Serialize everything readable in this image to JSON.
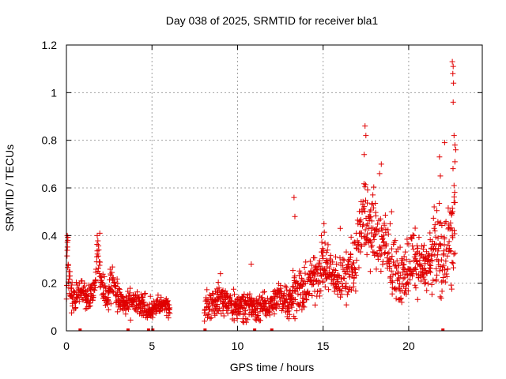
{
  "chart_data": {
    "type": "scatter",
    "title": "Day 038 of 2025, SRMTID for receiver bla1",
    "xlabel": "GPS time / hours",
    "ylabel": "SRMTID / TECUs",
    "xlim": [
      0,
      24.3
    ],
    "ylim": [
      0,
      1.2
    ],
    "x_ticks": [
      0,
      5,
      10,
      15,
      20
    ],
    "x_tick_labels": [
      "0",
      "5",
      "10",
      "15",
      "20"
    ],
    "y_ticks": [
      0,
      0.2,
      0.4,
      0.6,
      0.8,
      1,
      1.2
    ],
    "y_tick_labels": [
      "0",
      "0.2",
      "0.4",
      "0.6",
      "0.8",
      "1",
      "1.2"
    ],
    "grid": true,
    "marker": "+",
    "color": "#e00000",
    "profile": [
      [
        0.0,
        0.15,
        0.05
      ],
      [
        0.05,
        0.35,
        0.05
      ],
      [
        0.1,
        0.25,
        0.06
      ],
      [
        0.3,
        0.13,
        0.04
      ],
      [
        0.6,
        0.15,
        0.04
      ],
      [
        0.9,
        0.17,
        0.04
      ],
      [
        1.2,
        0.13,
        0.04
      ],
      [
        1.6,
        0.17,
        0.05
      ],
      [
        1.85,
        0.33,
        0.07
      ],
      [
        2.1,
        0.2,
        0.05
      ],
      [
        2.4,
        0.14,
        0.04
      ],
      [
        2.7,
        0.22,
        0.06
      ],
      [
        3.0,
        0.14,
        0.05
      ],
      [
        3.4,
        0.1,
        0.04
      ],
      [
        3.8,
        0.12,
        0.04
      ],
      [
        4.2,
        0.11,
        0.04
      ],
      [
        4.6,
        0.1,
        0.04
      ],
      [
        5.0,
        0.09,
        0.03
      ],
      [
        5.5,
        0.11,
        0.03
      ],
      [
        6.0,
        0.1,
        0.03
      ],
      [
        8.1,
        0.1,
        0.04
      ],
      [
        8.6,
        0.12,
        0.05
      ],
      [
        9.0,
        0.14,
        0.05
      ],
      [
        9.5,
        0.11,
        0.05
      ],
      [
        10.0,
        0.1,
        0.04
      ],
      [
        10.5,
        0.12,
        0.05
      ],
      [
        11.0,
        0.09,
        0.04
      ],
      [
        11.5,
        0.1,
        0.04
      ],
      [
        12.0,
        0.12,
        0.04
      ],
      [
        12.5,
        0.14,
        0.05
      ],
      [
        13.0,
        0.13,
        0.05
      ],
      [
        13.4,
        0.18,
        0.08
      ],
      [
        13.8,
        0.16,
        0.06
      ],
      [
        14.2,
        0.2,
        0.08
      ],
      [
        14.6,
        0.23,
        0.08
      ],
      [
        15.0,
        0.3,
        0.09
      ],
      [
        15.5,
        0.23,
        0.07
      ],
      [
        16.0,
        0.21,
        0.07
      ],
      [
        16.5,
        0.25,
        0.08
      ],
      [
        16.9,
        0.3,
        0.1
      ],
      [
        17.3,
        0.5,
        0.12
      ],
      [
        17.6,
        0.45,
        0.12
      ],
      [
        18.0,
        0.42,
        0.12
      ],
      [
        18.4,
        0.38,
        0.12
      ],
      [
        18.8,
        0.3,
        0.1
      ],
      [
        19.2,
        0.25,
        0.09
      ],
      [
        19.6,
        0.22,
        0.08
      ],
      [
        20.0,
        0.28,
        0.09
      ],
      [
        20.4,
        0.3,
        0.09
      ],
      [
        20.8,
        0.27,
        0.08
      ],
      [
        21.2,
        0.28,
        0.09
      ],
      [
        21.6,
        0.36,
        0.13
      ],
      [
        22.0,
        0.3,
        0.12
      ],
      [
        22.4,
        0.38,
        0.16
      ],
      [
        22.7,
        0.45,
        0.2
      ]
    ],
    "gaps": [
      [
        6.05,
        8.05
      ]
    ],
    "outliers": [
      [
        13.3,
        0.56
      ],
      [
        13.35,
        0.48
      ],
      [
        17.45,
        0.86
      ],
      [
        17.5,
        0.82
      ],
      [
        17.4,
        0.74
      ],
      [
        18.4,
        0.7
      ],
      [
        18.3,
        0.66
      ],
      [
        21.8,
        0.73
      ],
      [
        21.85,
        0.65
      ],
      [
        22.1,
        0.79
      ],
      [
        22.55,
        1.13
      ],
      [
        22.6,
        1.11
      ],
      [
        22.58,
        1.08
      ],
      [
        22.62,
        1.04
      ],
      [
        22.6,
        0.96
      ],
      [
        22.65,
        0.82
      ],
      [
        22.7,
        0.78
      ],
      [
        22.75,
        0.76
      ],
      [
        22.7,
        0.71
      ],
      [
        22.65,
        0.61
      ],
      [
        1.95,
        0.41
      ],
      [
        1.8,
        0.4
      ],
      [
        0.05,
        0.4
      ],
      [
        0.08,
        0.38
      ],
      [
        9.0,
        0.24
      ],
      [
        10.8,
        0.28
      ],
      [
        15.05,
        0.45
      ],
      [
        14.9,
        0.4
      ],
      [
        19.0,
        0.5
      ],
      [
        16.0,
        0.43
      ]
    ],
    "zero_markers": [
      0.8,
      3.6,
      4.8,
      5.05,
      8.1,
      11.0,
      12.0,
      22.0
    ],
    "sample_step": 0.02
  }
}
